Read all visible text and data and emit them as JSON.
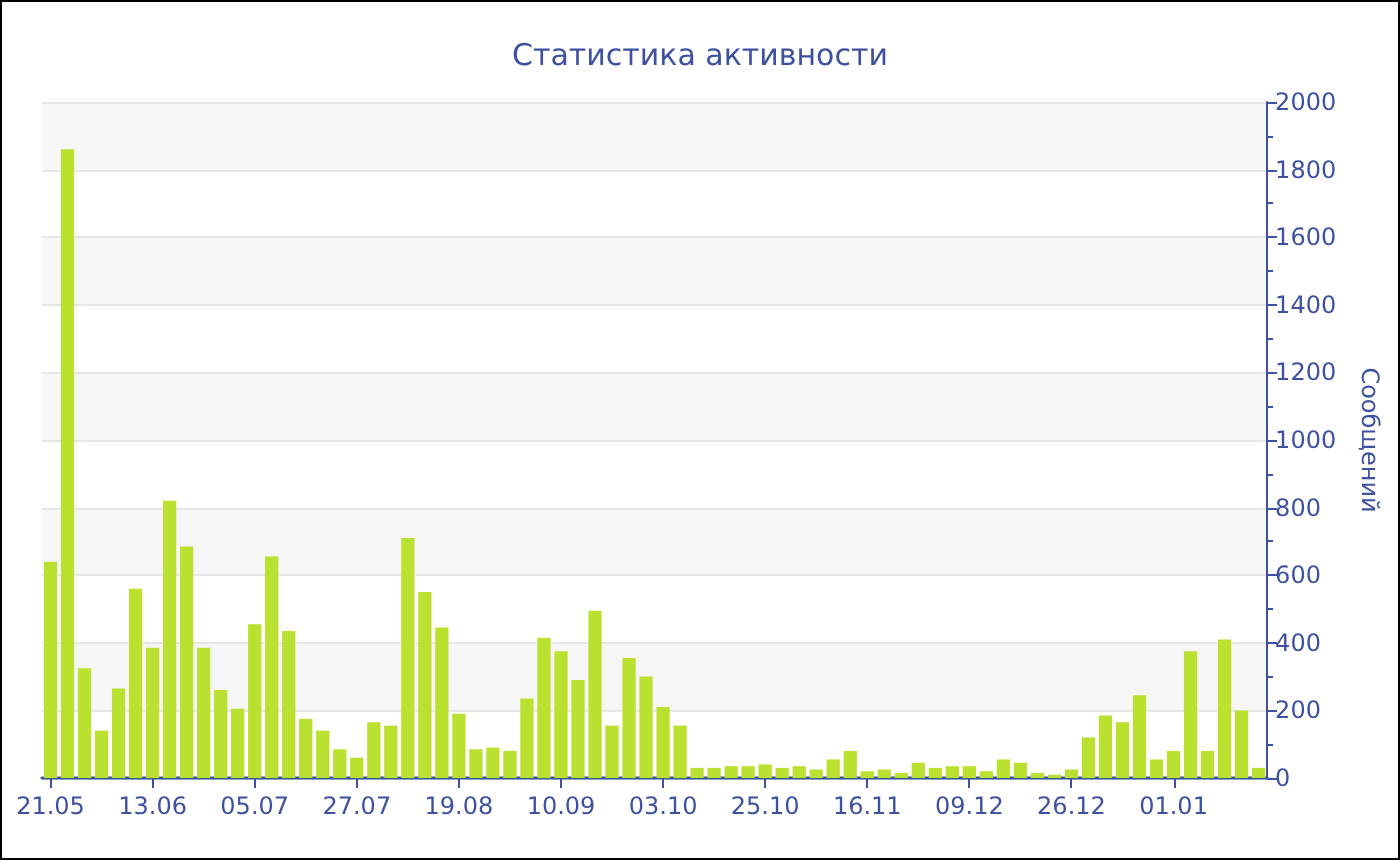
{
  "chart_data": {
    "type": "bar",
    "title": "Статистика активности",
    "ylabel": "Сообщений",
    "categories": [
      "21.05",
      null,
      null,
      null,
      null,
      null,
      "13.06",
      null,
      null,
      null,
      null,
      null,
      "05.07",
      null,
      null,
      null,
      null,
      null,
      "27.07",
      null,
      null,
      null,
      null,
      null,
      "19.08",
      null,
      null,
      null,
      null,
      null,
      "10.09",
      null,
      null,
      null,
      null,
      null,
      "03.10",
      null,
      null,
      null,
      null,
      null,
      "25.10",
      null,
      null,
      null,
      null,
      null,
      "16.11",
      null,
      null,
      null,
      null,
      null,
      "09.12",
      null,
      null,
      null,
      null,
      null,
      "26.12",
      null,
      null,
      null,
      null,
      null,
      "01.01",
      null,
      null,
      null,
      null,
      null
    ],
    "values": [
      640,
      1860,
      325,
      140,
      265,
      560,
      385,
      820,
      685,
      385,
      260,
      205,
      455,
      655,
      435,
      175,
      140,
      85,
      60,
      165,
      155,
      710,
      550,
      445,
      190,
      85,
      90,
      80,
      235,
      415,
      375,
      290,
      495,
      155,
      355,
      300,
      210,
      155,
      30,
      30,
      35,
      35,
      40,
      30,
      35,
      25,
      55,
      80,
      20,
      25,
      15,
      45,
      30,
      35,
      35,
      20,
      55,
      45,
      15,
      10,
      25,
      120,
      185,
      165,
      245,
      55,
      80,
      375,
      80,
      410,
      200,
      30
    ],
    "color": "#bae12f",
    "ylim": [
      0,
      2000
    ],
    "yticks": [
      0,
      200,
      400,
      600,
      800,
      1000,
      1200,
      1400,
      1600,
      1800,
      2000
    ],
    "grid": "y"
  }
}
